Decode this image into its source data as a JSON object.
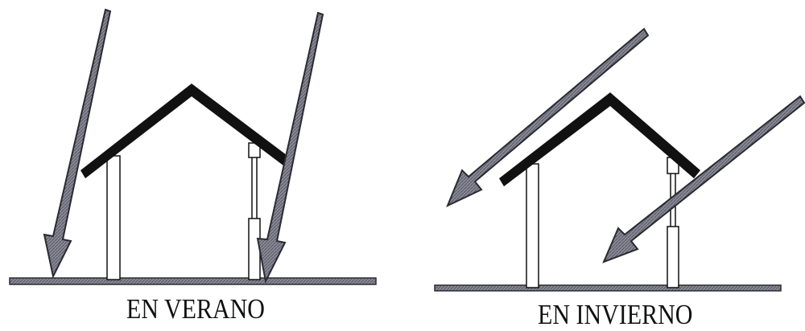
{
  "panels": {
    "summer": {
      "caption": "EN VERANO"
    },
    "winter": {
      "caption": "EN INVIERNO"
    }
  },
  "colors": {
    "background": "#ffffff",
    "line": "#111111",
    "ray_fill": "#7a7a88",
    "ray_outline": "#2a2a30",
    "wall": "#ffffff"
  },
  "icons": {
    "sun_ray": "arrow-icon",
    "house": "house-cross-section-icon"
  }
}
